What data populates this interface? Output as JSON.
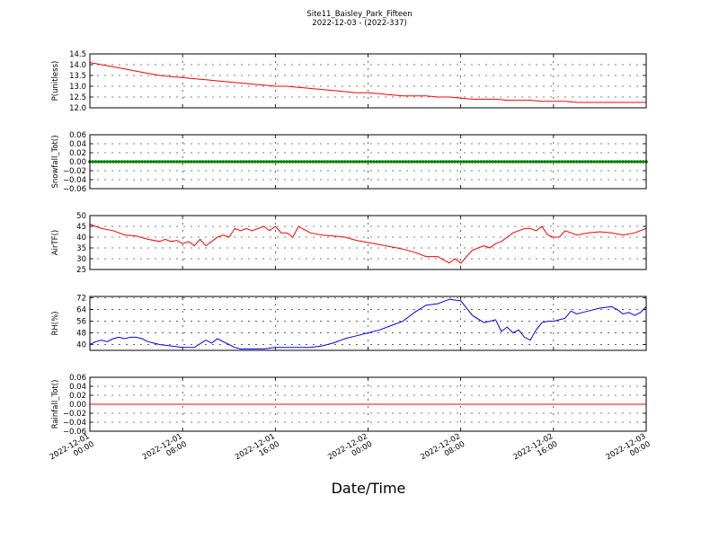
{
  "title": "Site11_Baisley_Park_Fifteen",
  "subtitle": "2022-12-03 - (2022-337)",
  "xlabel": "Date/Time",
  "chart_data": [
    {
      "type": "line",
      "ylabel": "P(unitless)",
      "ylim": [
        12.0,
        14.5
      ],
      "yticks": [
        "14.5",
        "14.0",
        "13.5",
        "13.0",
        "12.5",
        "12.0"
      ],
      "ytick_values": [
        14.5,
        14.0,
        13.5,
        13.0,
        12.5,
        12.0
      ],
      "grid": true,
      "series": [
        {
          "color": "#ff0000",
          "x": [
            0,
            1,
            2,
            3,
            4,
            5,
            6,
            7,
            8,
            9,
            10,
            11,
            12,
            13,
            14,
            15,
            16,
            17,
            18,
            19,
            20,
            21,
            22,
            23,
            24,
            25,
            26,
            27,
            28,
            29,
            30,
            31,
            32,
            33,
            34,
            35,
            36,
            37,
            38,
            39,
            40,
            41,
            42,
            43,
            44,
            45,
            46,
            47,
            48
          ],
          "y": [
            14.1,
            14.0,
            13.9,
            13.8,
            13.7,
            13.6,
            13.5,
            13.45,
            13.4,
            13.35,
            13.3,
            13.25,
            13.2,
            13.15,
            13.1,
            13.05,
            13.0,
            13.0,
            12.95,
            12.9,
            12.85,
            12.8,
            12.75,
            12.7,
            12.7,
            12.65,
            12.6,
            12.55,
            12.55,
            12.55,
            12.5,
            12.5,
            12.45,
            12.4,
            12.4,
            12.4,
            12.35,
            12.35,
            12.35,
            12.3,
            12.3,
            12.3,
            12.25,
            12.25,
            12.25,
            12.25,
            12.25,
            12.25,
            12.25
          ]
        }
      ]
    },
    {
      "type": "scatter",
      "ylabel": "Snowfall_Tot()",
      "ylim": [
        -0.06,
        0.06
      ],
      "yticks": [
        "0.06",
        "0.04",
        "0.02",
        "0.00",
        "−0.02",
        "−0.04",
        "−0.06"
      ],
      "ytick_values": [
        0.06,
        0.04,
        0.02,
        0.0,
        -0.02,
        -0.04,
        -0.06
      ],
      "grid": true,
      "series": [
        {
          "color": "#008000",
          "x_start": 0,
          "x_end": 48,
          "x_step": 0.25,
          "value": 0.0
        }
      ]
    },
    {
      "type": "line",
      "ylabel": "AirTF()",
      "ylim": [
        25,
        50
      ],
      "yticks": [
        "50",
        "45",
        "40",
        "35",
        "30",
        "25"
      ],
      "ytick_values": [
        50,
        45,
        40,
        35,
        30,
        25
      ],
      "grid": true,
      "series": [
        {
          "color": "#ff0000",
          "x": [
            0,
            1,
            2,
            3,
            4,
            5,
            6,
            6.5,
            7,
            7.5,
            8,
            8.5,
            9,
            9.5,
            10,
            10.5,
            11,
            11.5,
            12,
            12.5,
            13,
            13.5,
            14,
            14.5,
            15,
            15.5,
            16,
            16.5,
            17,
            17.5,
            18,
            19,
            20,
            21,
            22,
            23,
            24,
            25,
            26,
            27,
            28,
            29,
            30,
            31,
            31.5,
            32,
            32.5,
            33,
            33.5,
            34,
            34.5,
            35,
            35.5,
            36,
            36.5,
            37,
            37.5,
            38,
            38.5,
            39,
            39.5,
            40,
            40.5,
            41,
            42,
            43,
            44,
            45,
            46,
            47,
            48
          ],
          "y": [
            46,
            44,
            43,
            41,
            40.5,
            39,
            38,
            39,
            38,
            38.5,
            37,
            38,
            36,
            39,
            36,
            38,
            40,
            41,
            40,
            44,
            43,
            44,
            43,
            44,
            45,
            43,
            45,
            42,
            42,
            40,
            45,
            42,
            41,
            40.5,
            40,
            38.5,
            37.5,
            36.5,
            35.5,
            34.5,
            33,
            31,
            31,
            28,
            30,
            28,
            31,
            34,
            35,
            36,
            35,
            37,
            38,
            40,
            42,
            43,
            44,
            44,
            43,
            45,
            41,
            40,
            40,
            43,
            41,
            42,
            42.5,
            42,
            41,
            42,
            44
          ]
        }
      ]
    },
    {
      "type": "line",
      "ylabel": "RH(%)",
      "ylim": [
        36,
        73
      ],
      "yticks": [
        "72",
        "64",
        "56",
        "48",
        "40"
      ],
      "ytick_values": [
        72,
        64,
        56,
        48,
        40
      ],
      "grid": true,
      "series": [
        {
          "color": "#0000ff",
          "x": [
            0,
            0.5,
            1,
            1.5,
            2,
            2.5,
            3,
            3.5,
            4,
            4.5,
            5,
            5.5,
            6,
            7,
            8,
            9,
            10,
            10.5,
            11,
            11.5,
            12,
            12.5,
            13,
            14,
            15,
            16,
            17,
            18,
            19,
            20,
            21,
            22,
            23,
            24,
            25,
            26,
            27,
            28,
            29,
            30,
            31,
            32,
            33,
            34,
            35,
            35.5,
            36,
            36.5,
            37,
            37.5,
            38,
            38.5,
            39,
            39.5,
            40,
            40.5,
            41,
            41.5,
            42,
            42.5,
            43,
            44,
            45,
            45.5,
            46,
            46.5,
            47,
            47.5,
            48
          ],
          "y": [
            40,
            42,
            43,
            42,
            44,
            45,
            44,
            45,
            45,
            44,
            42,
            41,
            40,
            39,
            38,
            38,
            43,
            41,
            44,
            42,
            40,
            38,
            37,
            37,
            37,
            38,
            38,
            38,
            38,
            39,
            41,
            44,
            46,
            48,
            50,
            53,
            56,
            62,
            67,
            68,
            71,
            70,
            60,
            55,
            57,
            49,
            52,
            48,
            50,
            45,
            43,
            50,
            55,
            56,
            56,
            57,
            58,
            63,
            61,
            62,
            63,
            65,
            66,
            64,
            61,
            62,
            60,
            62,
            66
          ]
        }
      ]
    },
    {
      "type": "line",
      "ylabel": "Rainfall_Tot()",
      "ylim": [
        -0.06,
        0.06
      ],
      "yticks": [
        "0.06",
        "0.04",
        "0.02",
        "0.00",
        "−0.02",
        "−0.04",
        "−0.06"
      ],
      "ytick_values": [
        0.06,
        0.04,
        0.02,
        0.0,
        -0.02,
        -0.04,
        -0.06
      ],
      "grid": true,
      "series": [
        {
          "color": "#ff0000",
          "x": [
            0,
            48
          ],
          "y": [
            0.0,
            0.0
          ]
        }
      ]
    }
  ],
  "x_axis": {
    "unit": "hours since 2022-12-01 00:00",
    "range": [
      0,
      48
    ],
    "tick_values": [
      0,
      8,
      16,
      24,
      32,
      40,
      48
    ],
    "tick_labels": [
      {
        "date": "2022-12-01",
        "time": "00:00"
      },
      {
        "date": "2022-12-01",
        "time": "08:00"
      },
      {
        "date": "2022-12-01",
        "time": "16:00"
      },
      {
        "date": "2022-12-02",
        "time": "00:00"
      },
      {
        "date": "2022-12-02",
        "time": "08:00"
      },
      {
        "date": "2022-12-02",
        "time": "16:00"
      },
      {
        "date": "2022-12-03",
        "time": "00:00"
      }
    ]
  }
}
